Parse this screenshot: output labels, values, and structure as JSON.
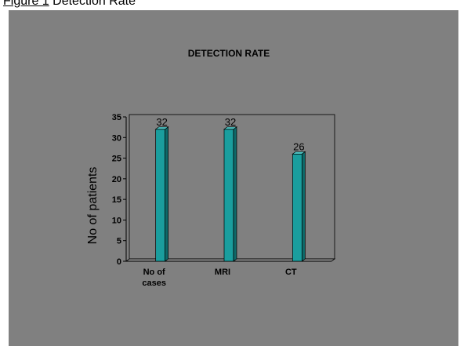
{
  "caption": {
    "figure_number": "Figure 1",
    "text": "Detection Rate"
  },
  "colors": {
    "panel_background": "#808080",
    "bar_front": "#1a9e9e",
    "bar_side": "#0e6a6a",
    "bar_top": "#4fc4c4"
  },
  "chart_data": {
    "type": "bar",
    "title": "DETECTION RATE",
    "ylabel": "No of patients",
    "xlabel": "",
    "categories": [
      "No of cases",
      "MRI",
      "CT"
    ],
    "values": [
      32,
      32,
      26
    ],
    "ylim": [
      0,
      35
    ],
    "yticks": [
      0,
      5,
      10,
      15,
      20,
      25,
      30,
      35
    ],
    "grid": false,
    "legend": "none",
    "style": "3d-bar"
  }
}
